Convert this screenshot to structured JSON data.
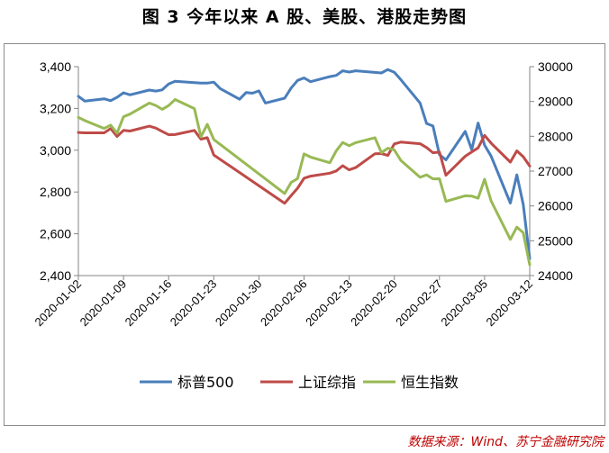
{
  "title": "图 3  今年以来 A 股、美股、港股走势图",
  "source": "数据来源：Wind、苏宁金融研究院",
  "chart_data": {
    "type": "line",
    "x_tick_labels": [
      "2020-01-02",
      "2020-01-09",
      "2020-01-16",
      "2020-01-23",
      "2020-01-30",
      "2020-02-06",
      "2020-02-13",
      "2020-02-20",
      "2020-02-27",
      "2020-03-05",
      "2020-03-12"
    ],
    "left_axis": {
      "ylim": [
        2400,
        3400
      ],
      "ticks": [
        "2,400",
        "2,600",
        "2,800",
        "3,000",
        "3,200",
        "3,400"
      ]
    },
    "right_axis": {
      "ylim": [
        24000,
        30000
      ],
      "ticks": [
        "24000",
        "25000",
        "26000",
        "27000",
        "28000",
        "29000",
        "30000"
      ]
    },
    "legend_placement": "bottom",
    "series": [
      {
        "name": "标普500",
        "axis": "left",
        "color": "#4a7ebb",
        "points": [
          [
            "2020-01-02",
            3258
          ],
          [
            "2020-01-03",
            3235
          ],
          [
            "2020-01-06",
            3246
          ],
          [
            "2020-01-07",
            3237
          ],
          [
            "2020-01-08",
            3253
          ],
          [
            "2020-01-09",
            3275
          ],
          [
            "2020-01-10",
            3265
          ],
          [
            "2020-01-13",
            3288
          ],
          [
            "2020-01-14",
            3283
          ],
          [
            "2020-01-15",
            3289
          ],
          [
            "2020-01-16",
            3317
          ],
          [
            "2020-01-17",
            3330
          ],
          [
            "2020-01-21",
            3321
          ],
          [
            "2020-01-22",
            3321
          ],
          [
            "2020-01-23",
            3326
          ],
          [
            "2020-01-24",
            3295
          ],
          [
            "2020-01-27",
            3244
          ],
          [
            "2020-01-28",
            3276
          ],
          [
            "2020-01-29",
            3273
          ],
          [
            "2020-01-30",
            3284
          ],
          [
            "2020-01-31",
            3226
          ],
          [
            "2020-02-03",
            3249
          ],
          [
            "2020-02-04",
            3298
          ],
          [
            "2020-02-05",
            3334
          ],
          [
            "2020-02-06",
            3346
          ],
          [
            "2020-02-07",
            3328
          ],
          [
            "2020-02-10",
            3352
          ],
          [
            "2020-02-11",
            3358
          ],
          [
            "2020-02-12",
            3380
          ],
          [
            "2020-02-13",
            3374
          ],
          [
            "2020-02-14",
            3380
          ],
          [
            "2020-02-18",
            3370
          ],
          [
            "2020-02-19",
            3386
          ],
          [
            "2020-02-20",
            3373
          ],
          [
            "2020-02-21",
            3338
          ],
          [
            "2020-02-24",
            3226
          ],
          [
            "2020-02-25",
            3128
          ],
          [
            "2020-02-26",
            3116
          ],
          [
            "2020-02-27",
            2979
          ],
          [
            "2020-02-28",
            2954
          ],
          [
            "2020-03-02",
            3090
          ],
          [
            "2020-03-03",
            3003
          ],
          [
            "2020-03-04",
            3130
          ],
          [
            "2020-03-05",
            3024
          ],
          [
            "2020-03-06",
            2972
          ],
          [
            "2020-03-09",
            2747
          ],
          [
            "2020-03-10",
            2882
          ],
          [
            "2020-03-11",
            2741
          ],
          [
            "2020-03-12",
            2481
          ]
        ]
      },
      {
        "name": "上证综指",
        "axis": "left",
        "color": "#be4b48",
        "points": [
          [
            "2020-01-02",
            3085
          ],
          [
            "2020-01-03",
            3083
          ],
          [
            "2020-01-06",
            3083
          ],
          [
            "2020-01-07",
            3104
          ],
          [
            "2020-01-08",
            3066
          ],
          [
            "2020-01-09",
            3095
          ],
          [
            "2020-01-10",
            3092
          ],
          [
            "2020-01-13",
            3115
          ],
          [
            "2020-01-14",
            3106
          ],
          [
            "2020-01-15",
            3090
          ],
          [
            "2020-01-16",
            3074
          ],
          [
            "2020-01-17",
            3075
          ],
          [
            "2020-01-20",
            3095
          ],
          [
            "2020-01-21",
            3053
          ],
          [
            "2020-01-22",
            3060
          ],
          [
            "2020-01-23",
            2977
          ],
          [
            "2020-02-03",
            2746
          ],
          [
            "2020-02-04",
            2783
          ],
          [
            "2020-02-05",
            2818
          ],
          [
            "2020-02-06",
            2866
          ],
          [
            "2020-02-07",
            2876
          ],
          [
            "2020-02-10",
            2890
          ],
          [
            "2020-02-11",
            2901
          ],
          [
            "2020-02-12",
            2926
          ],
          [
            "2020-02-13",
            2906
          ],
          [
            "2020-02-14",
            2917
          ],
          [
            "2020-02-17",
            2983
          ],
          [
            "2020-02-18",
            2984
          ],
          [
            "2020-02-19",
            2975
          ],
          [
            "2020-02-20",
            3030
          ],
          [
            "2020-02-21",
            3039
          ],
          [
            "2020-02-24",
            3031
          ],
          [
            "2020-02-25",
            3013
          ],
          [
            "2020-02-26",
            2988
          ],
          [
            "2020-02-27",
            2991
          ],
          [
            "2020-02-28",
            2880
          ],
          [
            "2020-03-02",
            2971
          ],
          [
            "2020-03-03",
            2992
          ],
          [
            "2020-03-04",
            3011
          ],
          [
            "2020-03-05",
            3071
          ],
          [
            "2020-03-06",
            3034
          ],
          [
            "2020-03-09",
            2943
          ],
          [
            "2020-03-10",
            2997
          ],
          [
            "2020-03-11",
            2969
          ],
          [
            "2020-03-12",
            2924
          ]
        ]
      },
      {
        "name": "恒生指数",
        "axis": "right",
        "color": "#98b954",
        "points": [
          [
            "2020-01-02",
            28544
          ],
          [
            "2020-01-03",
            28452
          ],
          [
            "2020-01-06",
            28226
          ],
          [
            "2020-01-07",
            28322
          ],
          [
            "2020-01-08",
            28088
          ],
          [
            "2020-01-09",
            28561
          ],
          [
            "2020-01-10",
            28638
          ],
          [
            "2020-01-13",
            28954
          ],
          [
            "2020-01-14",
            28885
          ],
          [
            "2020-01-15",
            28774
          ],
          [
            "2020-01-16",
            28883
          ],
          [
            "2020-01-17",
            29056
          ],
          [
            "2020-01-20",
            28795
          ],
          [
            "2020-01-21",
            27985
          ],
          [
            "2020-01-22",
            28341
          ],
          [
            "2020-01-23",
            27909
          ],
          [
            "2020-02-03",
            26356
          ],
          [
            "2020-02-04",
            26676
          ],
          [
            "2020-02-05",
            26786
          ],
          [
            "2020-02-06",
            27494
          ],
          [
            "2020-02-07",
            27404
          ],
          [
            "2020-02-10",
            27241
          ],
          [
            "2020-02-11",
            27584
          ],
          [
            "2020-02-12",
            27823
          ],
          [
            "2020-02-13",
            27730
          ],
          [
            "2020-02-14",
            27816
          ],
          [
            "2020-02-17",
            27960
          ],
          [
            "2020-02-18",
            27530
          ],
          [
            "2020-02-19",
            27656
          ],
          [
            "2020-02-20",
            27609
          ],
          [
            "2020-02-21",
            27308
          ],
          [
            "2020-02-24",
            26821
          ],
          [
            "2020-02-25",
            26893
          ],
          [
            "2020-02-26",
            26778
          ],
          [
            "2020-02-27",
            26779
          ],
          [
            "2020-02-28",
            26130
          ],
          [
            "2020-03-02",
            26292
          ],
          [
            "2020-03-03",
            26284
          ],
          [
            "2020-03-04",
            26222
          ],
          [
            "2020-03-05",
            26767
          ],
          [
            "2020-03-06",
            26146
          ],
          [
            "2020-03-09",
            25040
          ],
          [
            "2020-03-10",
            25392
          ],
          [
            "2020-03-11",
            25232
          ],
          [
            "2020-03-12",
            24309
          ]
        ]
      }
    ]
  }
}
